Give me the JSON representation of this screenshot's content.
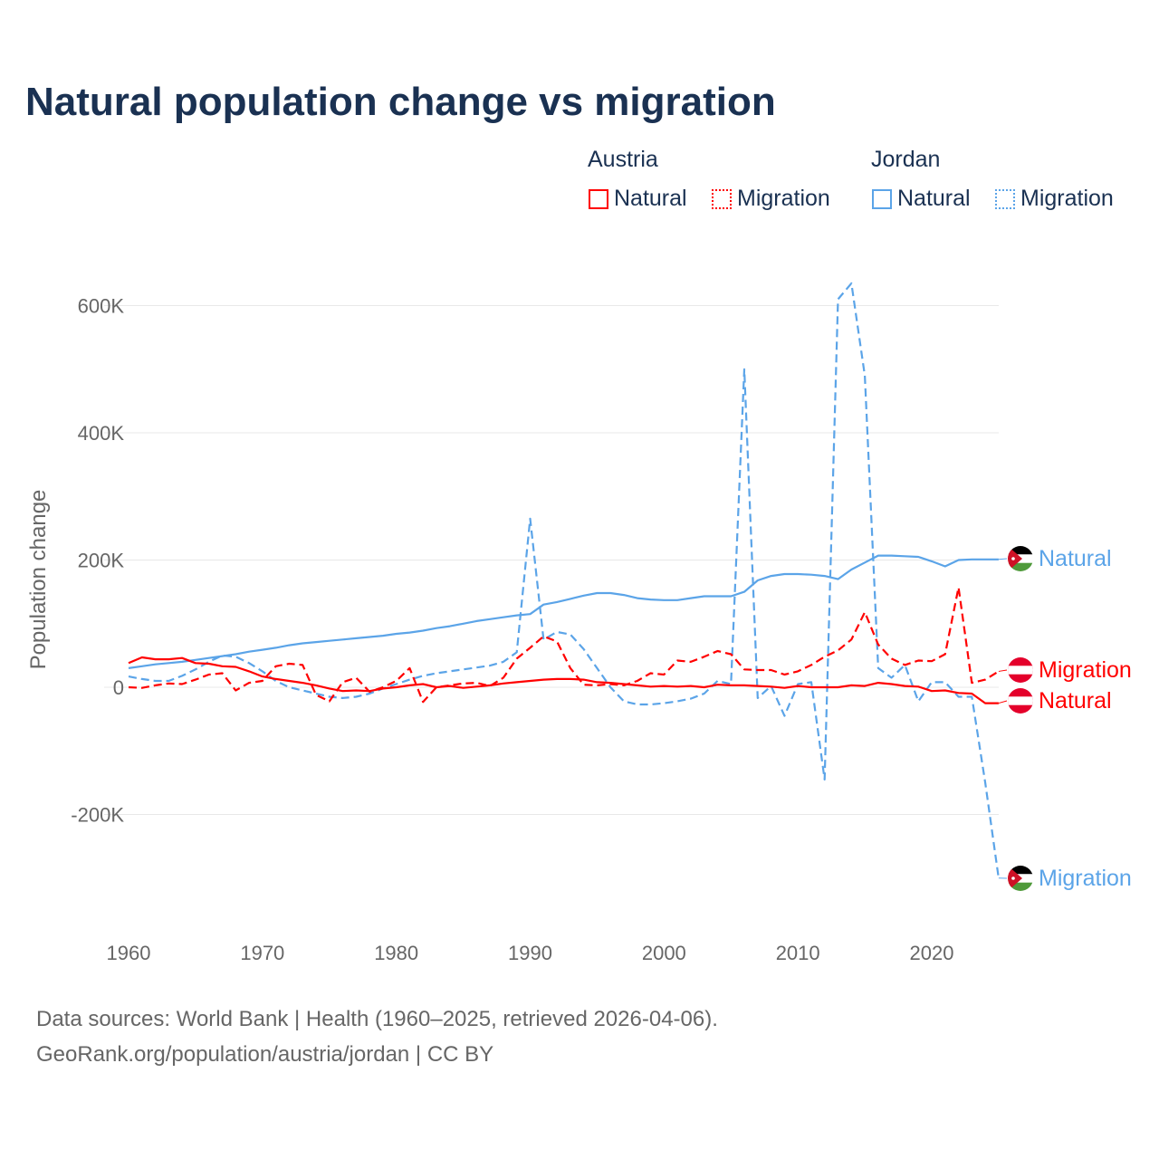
{
  "title": "Natural population change vs migration",
  "legend": {
    "groups": [
      {
        "name": "Austria",
        "items": [
          "Natural",
          "Migration"
        ],
        "color": "#ff0000"
      },
      {
        "name": "Jordan",
        "items": [
          "Natural",
          "Migration"
        ],
        "color": "#5ba4e8"
      }
    ]
  },
  "footer": {
    "line1": "Data sources: World Bank | Health (1960–2025, retrieved 2026-04-06).",
    "line2": "GeoRank.org/population/austria/jordan | CC BY"
  },
  "chart_data": {
    "type": "line",
    "title": "Natural population change vs migration",
    "xlabel": "",
    "ylabel": "Population change",
    "xlim": [
      1960,
      2025
    ],
    "ylim": [
      -300000,
      650000
    ],
    "x_ticks": [
      1960,
      1970,
      1980,
      1990,
      2000,
      2010,
      2020
    ],
    "x_tick_labels": [
      "1960",
      "1970",
      "1980",
      "1990",
      "2000",
      "2010",
      "2020"
    ],
    "y_ticks": [
      -200000,
      0,
      200000,
      400000,
      600000
    ],
    "y_tick_labels": [
      "-200K",
      "0",
      "200K",
      "400K",
      "600K"
    ],
    "grid": true,
    "legend_position": "top-right",
    "x_start": 1960,
    "series": [
      {
        "name": "Jordan Natural",
        "country": "Jordan",
        "label": "Natural",
        "color": "#5ba4e8",
        "dash": false,
        "values": [
          30,
          33,
          36,
          38,
          40,
          43,
          46,
          49,
          52,
          56,
          59,
          62,
          66,
          69,
          71,
          73,
          75,
          77,
          79,
          81,
          84,
          86,
          89,
          93,
          96,
          100,
          104,
          107,
          110,
          113,
          115,
          130,
          134,
          139,
          144,
          148,
          148,
          145,
          140,
          138,
          137,
          137,
          140,
          143,
          143,
          143,
          150,
          168,
          175,
          178,
          178,
          177,
          175,
          170,
          185,
          196,
          207,
          207,
          206,
          205,
          198,
          190,
          200,
          201,
          201,
          201
        ]
      },
      {
        "name": "Jordan Migration",
        "country": "Jordan",
        "label": "Migration",
        "color": "#5ba4e8",
        "dash": true,
        "values": [
          17,
          13,
          10,
          10,
          18,
          28,
          40,
          50,
          48,
          38,
          25,
          10,
          0,
          -5,
          -10,
          -15,
          -17,
          -15,
          -10,
          -2,
          5,
          12,
          18,
          22,
          25,
          28,
          31,
          34,
          40,
          55,
          265,
          75,
          87,
          83,
          60,
          30,
          0,
          -22,
          -27,
          -27,
          -25,
          -22,
          -18,
          -10,
          10,
          5,
          500,
          -17,
          2,
          -45,
          5,
          8,
          -145,
          610,
          635,
          490,
          30,
          15,
          35,
          -22,
          8,
          8,
          -15,
          -15,
          -150,
          -300
        ]
      },
      {
        "name": "Austria Natural",
        "country": "Austria",
        "label": "Natural",
        "color": "#ff0000",
        "dash": false,
        "values": [
          38,
          47,
          44,
          44,
          46,
          38,
          37,
          33,
          32,
          25,
          17,
          13,
          10,
          7,
          3,
          -2,
          -6,
          -5,
          -6,
          -2,
          0,
          3,
          5,
          0,
          2,
          -1,
          1,
          3,
          6,
          8,
          10,
          12,
          13,
          13,
          12,
          8,
          7,
          5,
          3,
          1,
          2,
          1,
          2,
          0,
          4,
          3,
          3,
          2,
          1,
          -1,
          2,
          0,
          0,
          0,
          3,
          2,
          7,
          5,
          2,
          1,
          -6,
          -5,
          -9,
          -10,
          -25,
          -25
        ]
      },
      {
        "name": "Austria Migration",
        "country": "Austria",
        "label": "Migration",
        "color": "#ff0000",
        "dash": true,
        "values": [
          0,
          -1,
          3,
          6,
          5,
          12,
          20,
          22,
          -5,
          7,
          10,
          33,
          37,
          35,
          -12,
          -22,
          8,
          15,
          -7,
          0,
          10,
          30,
          -23,
          0,
          3,
          6,
          7,
          2,
          15,
          45,
          62,
          80,
          72,
          30,
          4,
          3,
          5,
          3,
          10,
          22,
          20,
          42,
          40,
          48,
          57,
          52,
          28,
          27,
          27,
          20,
          25,
          35,
          48,
          58,
          75,
          118,
          67,
          45,
          35,
          42,
          41,
          52,
          157,
          7,
          12,
          25
        ]
      }
    ],
    "value_unit": "thousands"
  }
}
